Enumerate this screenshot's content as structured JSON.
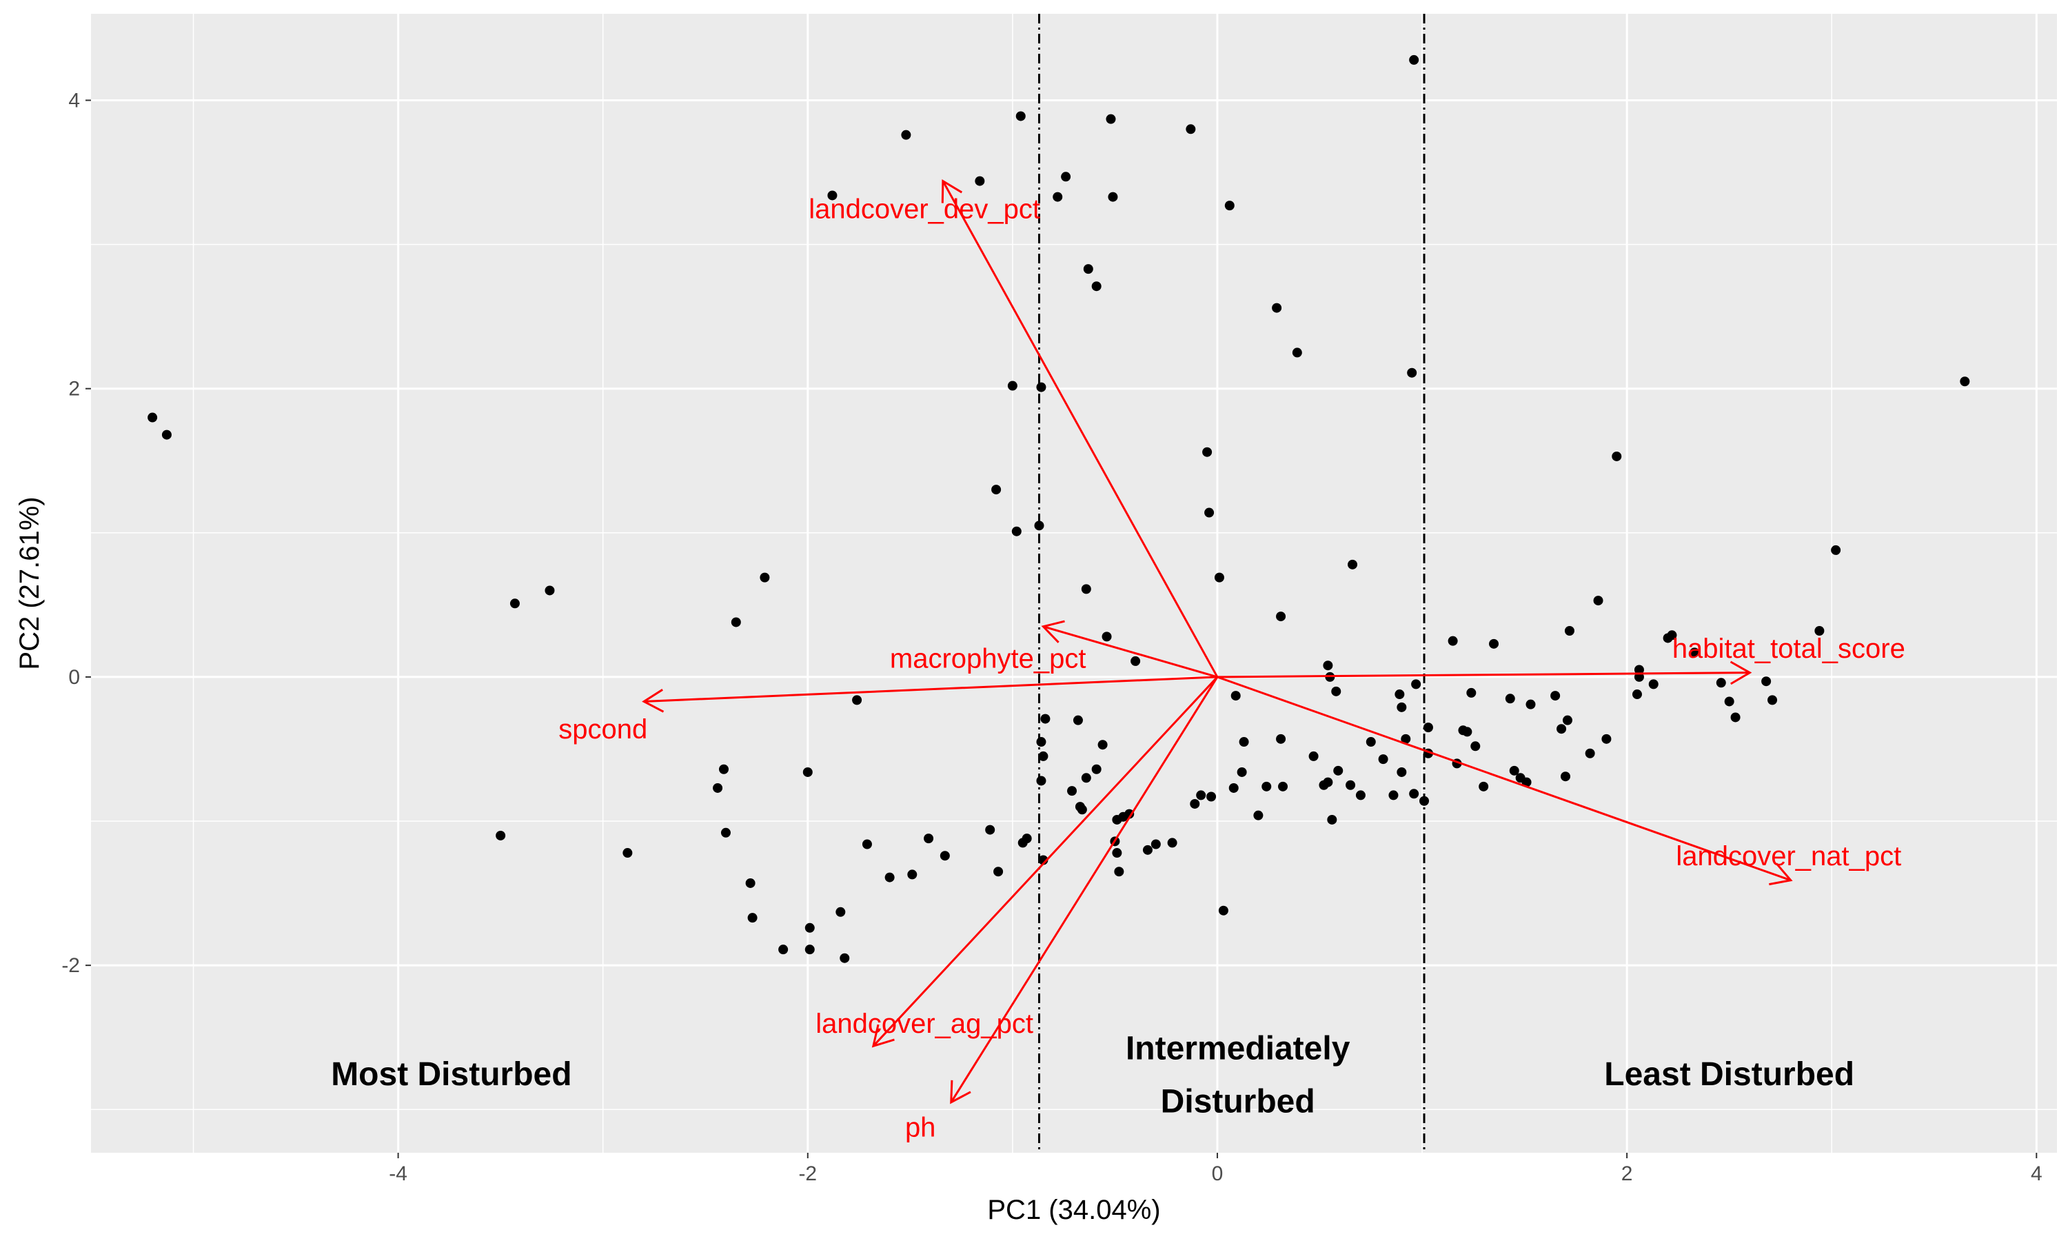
{
  "chart_data": {
    "type": "scatter",
    "title": "",
    "xlabel": "PC1 (34.04%)",
    "ylabel": "PC2 (27.61%)",
    "xlim": [
      -5.5,
      4.1
    ],
    "ylim": [
      -3.3,
      4.6
    ],
    "xticks": [
      -4,
      -2,
      0,
      2,
      4
    ],
    "yticks": [
      -2,
      0,
      2,
      4
    ],
    "grid": true,
    "vlines": [
      -0.87,
      1.01
    ],
    "colors": {
      "panel": "#ebebeb",
      "grid": "#ffffff",
      "point": "#000000",
      "vector": "#ff0000"
    },
    "regions": [
      {
        "label": "Most Disturbed",
        "x": -3.74,
        "y": -2.75
      },
      {
        "label": "Intermediately",
        "x": 0.1,
        "y": -2.57
      },
      {
        "label": "Disturbed",
        "x": 0.1,
        "y": -2.94
      },
      {
        "label": "Least Disturbed",
        "x": 2.5,
        "y": -2.75
      }
    ],
    "vectors": [
      {
        "name": "landcover_dev_pct",
        "x": -1.34,
        "y": 3.44,
        "lx": -1.43,
        "ly": 3.25
      },
      {
        "name": "macrophyte_pct",
        "x": -0.85,
        "y": 0.35,
        "lx": -1.12,
        "ly": 0.13
      },
      {
        "name": "spcond",
        "x": -2.8,
        "y": -0.17,
        "lx": -3.0,
        "ly": -0.36
      },
      {
        "name": "habitat_total_score",
        "x": 2.6,
        "y": 0.03,
        "lx": 2.79,
        "ly": 0.2
      },
      {
        "name": "landcover_nat_pct",
        "x": 2.8,
        "y": -1.41,
        "lx": 2.79,
        "ly": -1.24
      },
      {
        "name": "landcover_ag_pct",
        "x": -1.68,
        "y": -2.56,
        "lx": -1.43,
        "ly": -2.4
      },
      {
        "name": "ph",
        "x": -1.3,
        "y": -2.95,
        "lx": -1.45,
        "ly": -3.12
      }
    ],
    "points": [
      [
        -5.2,
        1.8
      ],
      [
        -5.13,
        1.68
      ],
      [
        -3.43,
        0.51
      ],
      [
        -3.26,
        0.6
      ],
      [
        -3.5,
        -1.1
      ],
      [
        -2.88,
        -1.22
      ],
      [
        -2.41,
        -0.64
      ],
      [
        -2.44,
        -0.77
      ],
      [
        -2.4,
        -1.08
      ],
      [
        -2.35,
        0.38
      ],
      [
        -2.21,
        0.69
      ],
      [
        -2.28,
        -1.43
      ],
      [
        -2.27,
        -1.67
      ],
      [
        -2.12,
        -1.89
      ],
      [
        -1.99,
        -1.74
      ],
      [
        -1.99,
        -1.89
      ],
      [
        -2.0,
        -0.66
      ],
      [
        -1.88,
        3.34
      ],
      [
        -1.84,
        -1.63
      ],
      [
        -1.82,
        -1.95
      ],
      [
        -1.76,
        -0.16
      ],
      [
        -1.71,
        -1.16
      ],
      [
        -1.6,
        -1.39
      ],
      [
        -1.52,
        3.76
      ],
      [
        -1.49,
        -1.37
      ],
      [
        -1.41,
        -1.12
      ],
      [
        -1.33,
        -1.24
      ],
      [
        -1.16,
        3.44
      ],
      [
        -1.11,
        -1.06
      ],
      [
        -1.08,
        1.3
      ],
      [
        -1.07,
        -1.35
      ],
      [
        -1.0,
        2.02
      ],
      [
        -0.98,
        1.01
      ],
      [
        -0.96,
        3.89
      ],
      [
        -0.95,
        -1.15
      ],
      [
        -0.93,
        -1.12
      ],
      [
        -0.87,
        1.05
      ],
      [
        -0.86,
        2.01
      ],
      [
        -0.85,
        -1.27
      ],
      [
        -0.86,
        -0.45
      ],
      [
        -0.85,
        -0.55
      ],
      [
        -0.86,
        -0.72
      ],
      [
        -0.84,
        -0.29
      ],
      [
        -0.78,
        3.33
      ],
      [
        -0.74,
        3.47
      ],
      [
        -0.71,
        -0.79
      ],
      [
        -0.68,
        -0.3
      ],
      [
        -0.67,
        -0.9
      ],
      [
        -0.66,
        -0.92
      ],
      [
        -0.64,
        -0.7
      ],
      [
        -0.64,
        0.61
      ],
      [
        -0.63,
        2.83
      ],
      [
        -0.59,
        2.71
      ],
      [
        -0.59,
        -0.64
      ],
      [
        -0.56,
        -0.47
      ],
      [
        -0.54,
        0.28
      ],
      [
        -0.52,
        3.87
      ],
      [
        -0.51,
        3.33
      ],
      [
        -0.5,
        -1.14
      ],
      [
        -0.49,
        -0.99
      ],
      [
        -0.49,
        -1.22
      ],
      [
        -0.48,
        -1.35
      ],
      [
        -0.46,
        -0.97
      ],
      [
        -0.43,
        -0.95
      ],
      [
        -0.4,
        0.11
      ],
      [
        -0.34,
        -1.2
      ],
      [
        -0.3,
        -1.16
      ],
      [
        -0.22,
        -1.15
      ],
      [
        -0.13,
        3.8
      ],
      [
        -0.11,
        -0.88
      ],
      [
        -0.08,
        -0.82
      ],
      [
        -0.05,
        1.56
      ],
      [
        -0.04,
        1.14
      ],
      [
        -0.03,
        -0.83
      ],
      [
        0.01,
        0.69
      ],
      [
        0.03,
        -1.62
      ],
      [
        0.06,
        3.27
      ],
      [
        0.08,
        -0.77
      ],
      [
        0.09,
        -0.13
      ],
      [
        0.12,
        -0.66
      ],
      [
        0.13,
        -0.45
      ],
      [
        0.2,
        -0.96
      ],
      [
        0.24,
        -0.76
      ],
      [
        0.29,
        2.56
      ],
      [
        0.31,
        0.42
      ],
      [
        0.31,
        -0.43
      ],
      [
        0.32,
        -0.76
      ],
      [
        0.39,
        2.25
      ],
      [
        0.47,
        -0.55
      ],
      [
        0.52,
        -0.75
      ],
      [
        0.54,
        -0.73
      ],
      [
        0.54,
        0.08
      ],
      [
        0.55,
        0.0
      ],
      [
        0.56,
        -0.99
      ],
      [
        0.58,
        -0.1
      ],
      [
        0.59,
        -0.65
      ],
      [
        0.65,
        -0.75
      ],
      [
        0.66,
        0.78
      ],
      [
        0.7,
        -0.82
      ],
      [
        0.75,
        -0.45
      ],
      [
        0.81,
        -0.57
      ],
      [
        0.86,
        -0.82
      ],
      [
        0.89,
        -0.12
      ],
      [
        0.9,
        -0.21
      ],
      [
        0.9,
        -0.66
      ],
      [
        0.92,
        -0.43
      ],
      [
        0.95,
        2.11
      ],
      [
        0.96,
        4.28
      ],
      [
        0.96,
        -0.81
      ],
      [
        0.97,
        -0.05
      ],
      [
        1.01,
        -0.86
      ],
      [
        1.03,
        -0.35
      ],
      [
        1.03,
        -0.53
      ],
      [
        1.15,
        0.25
      ],
      [
        1.17,
        -0.6
      ],
      [
        1.2,
        -0.37
      ],
      [
        1.22,
        -0.38
      ],
      [
        1.24,
        -0.11
      ],
      [
        1.26,
        -0.48
      ],
      [
        1.3,
        -0.76
      ],
      [
        1.35,
        0.23
      ],
      [
        1.43,
        -0.15
      ],
      [
        1.45,
        -0.65
      ],
      [
        1.48,
        -0.7
      ],
      [
        1.51,
        -0.73
      ],
      [
        1.53,
        -0.19
      ],
      [
        1.65,
        -0.13
      ],
      [
        1.68,
        -0.36
      ],
      [
        1.7,
        -0.69
      ],
      [
        1.71,
        -0.3
      ],
      [
        1.72,
        0.32
      ],
      [
        1.82,
        -0.53
      ],
      [
        1.86,
        0.53
      ],
      [
        1.9,
        -0.43
      ],
      [
        1.95,
        1.53
      ],
      [
        2.05,
        -0.12
      ],
      [
        2.06,
        0.0
      ],
      [
        2.06,
        0.05
      ],
      [
        2.13,
        -0.05
      ],
      [
        2.2,
        0.27
      ],
      [
        2.22,
        0.29
      ],
      [
        2.33,
        0.17
      ],
      [
        2.46,
        -0.04
      ],
      [
        2.5,
        -0.17
      ],
      [
        2.53,
        -0.28
      ],
      [
        2.68,
        -0.03
      ],
      [
        2.71,
        -0.16
      ],
      [
        2.94,
        0.32
      ],
      [
        3.02,
        0.88
      ],
      [
        3.65,
        2.05
      ]
    ]
  }
}
